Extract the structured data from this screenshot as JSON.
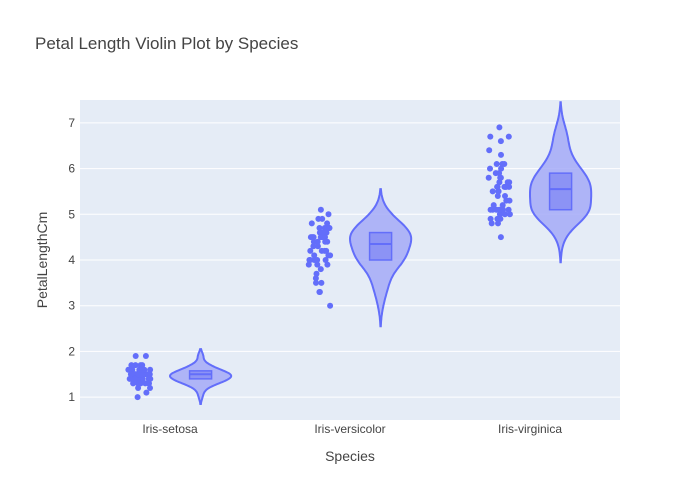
{
  "chart_data": {
    "type": "violin",
    "title": "Petal Length Violin Plot by Species",
    "xlabel": "Species",
    "ylabel": "PetalLengthCm",
    "categories": [
      "Iris-setosa",
      "Iris-versicolor",
      "Iris-virginica"
    ],
    "ylim": [
      0.5,
      7.5
    ],
    "yticks": [
      1,
      2,
      3,
      4,
      5,
      6,
      7
    ],
    "grid": true,
    "legend": "none",
    "colors": {
      "marker": "#636efa",
      "plot_bg": "#e5ecf6",
      "violin_fill": "#a4aaf7",
      "box_fill": "#8c93f5"
    },
    "series": [
      {
        "category": "Iris-setosa",
        "points": [
          1.4,
          1.4,
          1.3,
          1.5,
          1.4,
          1.7,
          1.4,
          1.5,
          1.4,
          1.5,
          1.5,
          1.6,
          1.4,
          1.1,
          1.2,
          1.5,
          1.3,
          1.4,
          1.7,
          1.5,
          1.7,
          1.5,
          1.0,
          1.7,
          1.9,
          1.6,
          1.6,
          1.5,
          1.4,
          1.6,
          1.6,
          1.5,
          1.5,
          1.4,
          1.5,
          1.2,
          1.3,
          1.5,
          1.3,
          1.5,
          1.3,
          1.3,
          1.3,
          1.6,
          1.9,
          1.4,
          1.6,
          1.4,
          1.5,
          1.4
        ],
        "box": {
          "q1": 1.4,
          "median": 1.5,
          "q3": 1.575
        },
        "violin_range": [
          0.85,
          2.05
        ]
      },
      {
        "category": "Iris-versicolor",
        "points": [
          4.7,
          4.5,
          4.9,
          4.0,
          4.6,
          4.5,
          4.7,
          3.3,
          4.6,
          3.9,
          3.5,
          4.2,
          4.0,
          4.7,
          3.6,
          4.4,
          4.5,
          4.1,
          4.5,
          3.9,
          4.8,
          4.0,
          4.9,
          4.7,
          4.3,
          4.4,
          4.8,
          5.0,
          4.5,
          3.5,
          3.8,
          3.7,
          3.9,
          5.1,
          4.5,
          4.5,
          4.7,
          4.4,
          4.1,
          4.0,
          4.4,
          4.6,
          4.0,
          3.3,
          4.2,
          4.2,
          4.2,
          4.3,
          3.0,
          4.1
        ],
        "box": {
          "q1": 4.0,
          "median": 4.35,
          "q3": 4.6
        },
        "violin_range": [
          2.55,
          5.55
        ]
      },
      {
        "category": "Iris-virginica",
        "points": [
          6.0,
          5.1,
          5.9,
          5.6,
          5.8,
          6.6,
          4.5,
          6.3,
          5.8,
          6.1,
          5.1,
          5.3,
          5.5,
          5.0,
          5.1,
          5.3,
          5.5,
          6.7,
          6.9,
          5.0,
          5.7,
          4.9,
          6.7,
          4.9,
          5.7,
          6.0,
          4.8,
          4.9,
          5.6,
          5.8,
          6.1,
          6.4,
          5.6,
          5.1,
          5.6,
          6.1,
          5.6,
          5.5,
          4.8,
          5.4,
          5.6,
          5.1,
          5.1,
          5.9,
          5.7,
          5.2,
          5.0,
          5.2,
          5.4,
          5.1
        ],
        "box": {
          "q1": 5.1,
          "median": 5.55,
          "q3": 5.9
        },
        "violin_range": [
          3.95,
          7.45
        ]
      }
    ]
  }
}
